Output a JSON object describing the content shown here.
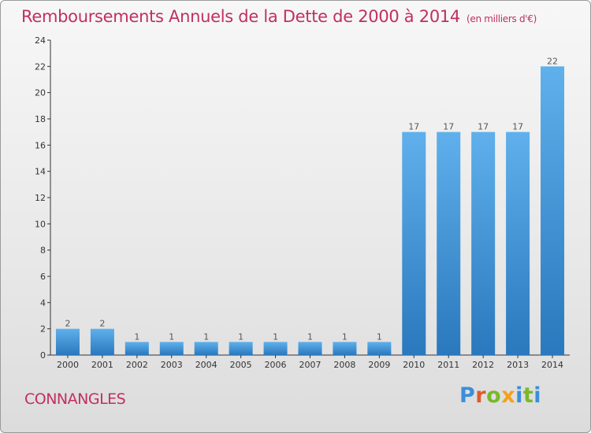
{
  "title": "Remboursements Annuels de la Dette de 2000 à 2014",
  "subtitle": "(en milliers d'€)",
  "place": "CONNANGLES",
  "logo": "Proxiti",
  "colors": {
    "bar_light": "#5fb0ec",
    "bar_dark": "#2a78bd",
    "title": "#c0305e"
  },
  "chart_data": {
    "type": "bar",
    "categories": [
      "2000",
      "2001",
      "2002",
      "2003",
      "2004",
      "2005",
      "2006",
      "2007",
      "2008",
      "2009",
      "2010",
      "2011",
      "2012",
      "2013",
      "2014"
    ],
    "values": [
      2,
      2,
      1,
      1,
      1,
      1,
      1,
      1,
      1,
      1,
      17,
      17,
      17,
      17,
      22
    ],
    "ylim": [
      0,
      24
    ],
    "yticks": [
      0,
      2,
      4,
      6,
      8,
      10,
      12,
      14,
      16,
      18,
      20,
      22,
      24
    ],
    "grid": false,
    "data_labels": true
  }
}
